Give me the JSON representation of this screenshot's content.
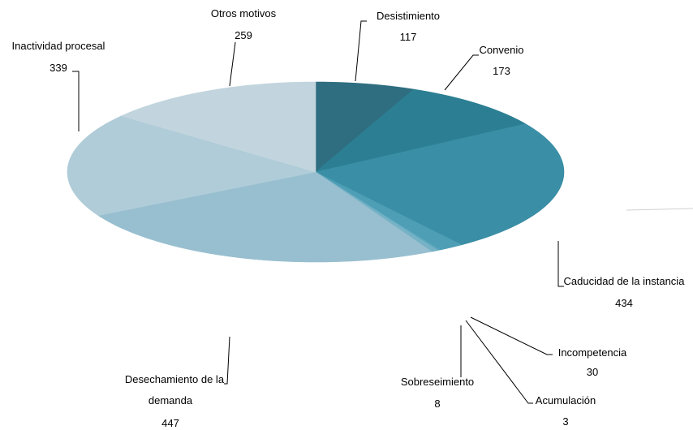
{
  "chart_data": {
    "type": "pie",
    "variant": "3d",
    "title": "",
    "slices": [
      {
        "label": "Desistimiento",
        "value": 117,
        "color": "#2F6E80"
      },
      {
        "label": "Convenio",
        "value": 173,
        "color": "#2C7F93"
      },
      {
        "label": "Caducidad de la instancia",
        "value": 434,
        "color": "#3A8EA5"
      },
      {
        "label": "Incompetencia",
        "value": 30,
        "color": "#4E9EB6"
      },
      {
        "label": "Acumulación",
        "value": 3,
        "color": "#5EA8BE"
      },
      {
        "label": "Sobreseimiento",
        "value": 8,
        "color": "#76B2C6"
      },
      {
        "label": "Desechamiento de la demanda",
        "value": 447,
        "color": "#98BFCF"
      },
      {
        "label": "Inactividad procesal",
        "value": 339,
        "color": "#AFCCD8"
      },
      {
        "label": "Otros motivos",
        "value": 259,
        "color": "#C2D5DE"
      }
    ]
  }
}
